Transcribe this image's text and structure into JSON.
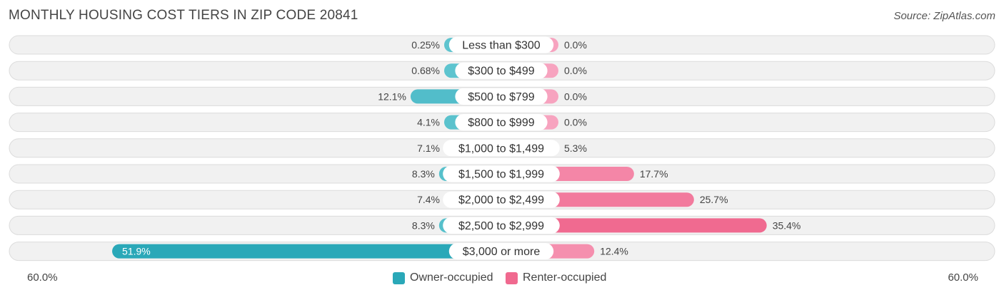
{
  "title": "MONTHLY HOUSING COST TIERS IN ZIP CODE 20841",
  "source": "Source: ZipAtlas.com",
  "colors": {
    "owner": "#5ec4cf",
    "owner_strong": "#2aa8b8",
    "renter": "#f7a3bf",
    "renter_strong": "#f0698f",
    "row_bg": "#f1f1f1",
    "row_border": "#dcdcdc"
  },
  "chart_data": {
    "type": "bar",
    "orientation": "horizontal-diverging",
    "categories": [
      "Less than $300",
      "$300 to $499",
      "$500 to $799",
      "$800 to $999",
      "$1,000 to $1,499",
      "$1,500 to $1,999",
      "$2,000 to $2,499",
      "$2,500 to $2,999",
      "$3,000 or more"
    ],
    "series": [
      {
        "name": "Owner-occupied",
        "values": [
          0.25,
          0.68,
          12.1,
          4.1,
          7.1,
          8.3,
          7.4,
          8.3,
          51.9
        ],
        "labels": [
          "0.25%",
          "0.68%",
          "12.1%",
          "4.1%",
          "7.1%",
          "8.3%",
          "7.4%",
          "8.3%",
          "51.9%"
        ]
      },
      {
        "name": "Renter-occupied",
        "values": [
          0.0,
          0.0,
          0.0,
          0.0,
          5.3,
          17.7,
          25.7,
          35.4,
          12.4
        ],
        "labels": [
          "0.0%",
          "0.0%",
          "0.0%",
          "0.0%",
          "5.3%",
          "17.7%",
          "25.7%",
          "35.4%",
          "12.4%"
        ]
      }
    ],
    "xlim": [
      -60,
      60
    ],
    "axis_left_label": "60.0%",
    "axis_right_label": "60.0%",
    "legend_position": "bottom-center"
  }
}
